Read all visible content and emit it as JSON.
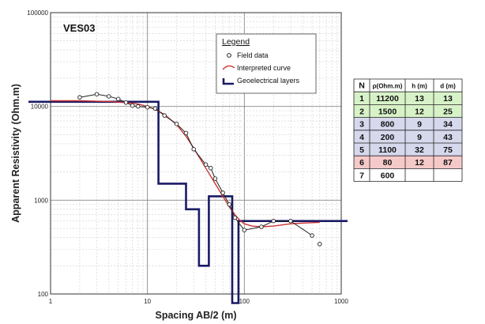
{
  "chart_data": {
    "type": "line",
    "title": "VES03",
    "xlabel": "Spacing  AB/2 (m)",
    "ylabel": "Apparent Resistivity (Ohm.m)",
    "xscale": "log",
    "yscale": "log",
    "xlim": [
      1,
      1000
    ],
    "ylim": [
      100,
      100000
    ],
    "grid": true,
    "x_ticks": [
      "1",
      "10",
      "100",
      "1000"
    ],
    "y_ticks": [
      "100",
      "1000",
      "10000",
      "100000"
    ],
    "legend": {
      "title": "Legend",
      "placement": "top-center",
      "entries": [
        "Field data",
        "Interpreted curve",
        "Geoelectrical layers"
      ]
    },
    "series": [
      {
        "name": "Field data",
        "kind": "scatter-line",
        "color": "#222222",
        "x": [
          2,
          3,
          4,
          5,
          6,
          7,
          8,
          10,
          12,
          15,
          20,
          25,
          30,
          40,
          45,
          50,
          60,
          70,
          80,
          100,
          150,
          200,
          300,
          500,
          600
        ],
        "y": [
          12500,
          13500,
          12800,
          12000,
          11000,
          10200,
          10000,
          9800,
          9500,
          8000,
          6500,
          5200,
          3500,
          2400,
          2200,
          1700,
          1200,
          900,
          650,
          480,
          520,
          600,
          600,
          420,
          340
        ]
      },
      {
        "name": "Interpreted curve",
        "kind": "line",
        "color": "#cc3333",
        "x": [
          1,
          2,
          4,
          6,
          8,
          10,
          12,
          15,
          20,
          25,
          30,
          40,
          50,
          60,
          70,
          80,
          90,
          100,
          120,
          150,
          200,
          300,
          400,
          600
        ],
        "y": [
          11500,
          11500,
          11300,
          11000,
          10600,
          10000,
          9300,
          8200,
          6400,
          4800,
          3600,
          2200,
          1500,
          1100,
          850,
          700,
          610,
          560,
          530,
          520,
          530,
          560,
          570,
          580
        ]
      },
      {
        "name": "Geoelectrical layers",
        "kind": "step",
        "color": "#1a1a66",
        "x": [
          1,
          13,
          13,
          25,
          25,
          34,
          34,
          43,
          43,
          75,
          75,
          87,
          87,
          1000
        ],
        "y": [
          11200,
          11200,
          1500,
          1500,
          800,
          800,
          200,
          200,
          1100,
          1100,
          80,
          80,
          600,
          600
        ]
      }
    ],
    "table": {
      "headers": [
        "N",
        "ρ(Ohm.m)",
        "h (m)",
        "d (m)"
      ],
      "rows": [
        {
          "n": "1",
          "rho": "11200",
          "h": "13",
          "d": "13",
          "color": "#d8f2c8"
        },
        {
          "n": "2",
          "rho": "1500",
          "h": "12",
          "d": "25",
          "color": "#d8f2c8"
        },
        {
          "n": "3",
          "rho": "800",
          "h": "9",
          "d": "34",
          "color": "#d6d8ec"
        },
        {
          "n": "4",
          "rho": "200",
          "h": "9",
          "d": "43",
          "color": "#d6d8ec"
        },
        {
          "n": "5",
          "rho": "1100",
          "h": "32",
          "d": "75",
          "color": "#d6d8ec"
        },
        {
          "n": "6",
          "rho": "80",
          "h": "12",
          "d": "87",
          "color": "#f6c9c9"
        },
        {
          "n": "7",
          "rho": "600",
          "h": "",
          "d": "",
          "color": "#ffffff"
        }
      ]
    }
  }
}
